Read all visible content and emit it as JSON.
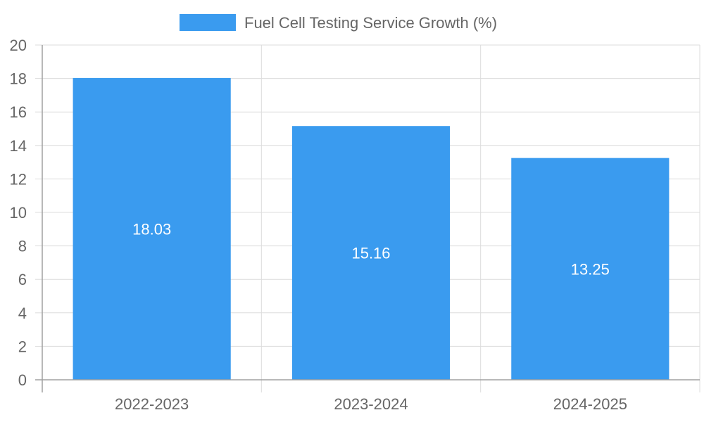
{
  "chart_data": {
    "type": "bar",
    "categories": [
      "2022-2023",
      "2023-2024",
      "2024-2025"
    ],
    "series": [
      {
        "name": "Fuel Cell Testing Service Growth (%)",
        "values": [
          18.03,
          15.16,
          13.25
        ],
        "color": "#3a9bef"
      }
    ],
    "data_labels": [
      "18.03",
      "15.16",
      "13.25"
    ],
    "ylim": [
      0,
      20
    ],
    "y_ticks": [
      "0",
      "2",
      "4",
      "6",
      "8",
      "10",
      "12",
      "14",
      "16",
      "18",
      "20"
    ],
    "grid": true,
    "legend_position": "top-center"
  }
}
